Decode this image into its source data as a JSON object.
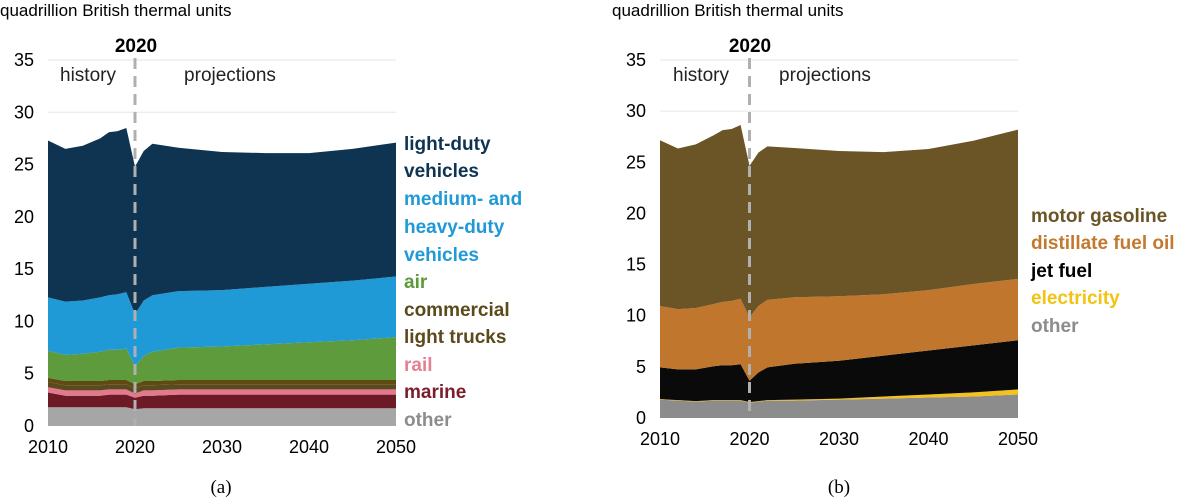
{
  "chart_data": [
    {
      "type": "area",
      "stacked": true,
      "caption": "(a)",
      "unit_label": "quadrillion British thermal units",
      "marker_year": "2020",
      "history_label": "history",
      "projections_label": "projections",
      "x": [
        2010,
        2012,
        2014,
        2016,
        2017,
        2018,
        2019,
        2020,
        2021,
        2022,
        2025,
        2030,
        2035,
        2040,
        2045,
        2050
      ],
      "xlim": [
        2010,
        2050
      ],
      "ylim": [
        0,
        35
      ],
      "xticks": [
        "2010",
        "2020",
        "2030",
        "2040",
        "2050"
      ],
      "yticks": [
        "0",
        "5",
        "10",
        "15",
        "20",
        "25",
        "30",
        "35"
      ],
      "series": [
        {
          "name": "other",
          "color": "#a6a6a6",
          "label_color": "#8c8c8c",
          "values": [
            1.8,
            1.8,
            1.8,
            1.8,
            1.8,
            1.8,
            1.8,
            1.6,
            1.7,
            1.7,
            1.7,
            1.7,
            1.7,
            1.7,
            1.7,
            1.7
          ]
        },
        {
          "name": "marine",
          "color": "#6b1a26",
          "label_color": "#7b1e2b",
          "values": [
            1.4,
            1.1,
            1.1,
            1.1,
            1.2,
            1.2,
            1.2,
            1.1,
            1.2,
            1.2,
            1.3,
            1.3,
            1.3,
            1.3,
            1.3,
            1.3
          ]
        },
        {
          "name": "rail",
          "color": "#e3798e",
          "label_color": "#e57f92",
          "values": [
            0.5,
            0.5,
            0.5,
            0.5,
            0.5,
            0.5,
            0.5,
            0.4,
            0.5,
            0.5,
            0.5,
            0.5,
            0.5,
            0.5,
            0.5,
            0.5
          ]
        },
        {
          "name": "light trucks",
          "color": "#5a4a1e",
          "label_color": "#5b4a1c",
          "values": [
            0.5,
            0.5,
            0.5,
            0.5,
            0.5,
            0.5,
            0.5,
            0.5,
            0.5,
            0.5,
            0.5,
            0.5,
            0.5,
            0.5,
            0.5,
            0.5
          ]
        },
        {
          "name": "commercial",
          "color": "#5f4b12",
          "label_color": "#5b4a1c",
          "values": [
            0.4,
            0.4,
            0.4,
            0.4,
            0.4,
            0.4,
            0.4,
            0.4,
            0.4,
            0.4,
            0.4,
            0.4,
            0.4,
            0.4,
            0.4,
            0.4
          ]
        },
        {
          "name": "air",
          "color": "#5d9b3c",
          "label_color": "#5a9a3a",
          "values": [
            2.6,
            2.5,
            2.6,
            2.8,
            2.9,
            2.9,
            3.0,
            1.7,
            2.4,
            2.8,
            3.1,
            3.2,
            3.4,
            3.6,
            3.8,
            4.1
          ]
        },
        {
          "name": "medium- and heavy-duty vehicles",
          "color": "#1f9ad6",
          "label_color": "#1f9ad6",
          "values": [
            5.1,
            5.1,
            5.1,
            5.2,
            5.2,
            5.3,
            5.4,
            5.0,
            5.3,
            5.4,
            5.4,
            5.4,
            5.5,
            5.6,
            5.7,
            5.8
          ]
        },
        {
          "name": "light-duty vehicles",
          "color": "#0e3452",
          "label_color": "#0e3452",
          "values": [
            15.0,
            14.6,
            14.8,
            15.2,
            15.6,
            15.6,
            15.7,
            14.1,
            14.3,
            14.5,
            13.7,
            13.2,
            12.8,
            12.5,
            12.6,
            12.8
          ]
        }
      ],
      "legend": [
        "light-duty",
        "vehicles",
        "medium- and",
        "heavy-duty",
        "vehicles",
        "air",
        "commercial",
        "light trucks",
        "rail",
        "marine",
        "other"
      ]
    },
    {
      "type": "area",
      "stacked": true,
      "caption": "(b)",
      "unit_label": "quadrillion British thermal units",
      "marker_year": "2020",
      "history_label": "history",
      "projections_label": "projections",
      "x": [
        2010,
        2012,
        2014,
        2016,
        2017,
        2018,
        2019,
        2020,
        2021,
        2022,
        2025,
        2030,
        2035,
        2040,
        2045,
        2050
      ],
      "xlim": [
        2010,
        2050
      ],
      "ylim": [
        0,
        35
      ],
      "xticks": [
        "2010",
        "2020",
        "2030",
        "2040",
        "2050"
      ],
      "yticks": [
        "0",
        "5",
        "10",
        "15",
        "20",
        "25",
        "30",
        "35"
      ],
      "series": [
        {
          "name": "other",
          "color": "#8c8c8c",
          "label_color": "#8c8c8c",
          "values": [
            1.8,
            1.7,
            1.6,
            1.7,
            1.7,
            1.7,
            1.7,
            1.5,
            1.6,
            1.7,
            1.7,
            1.8,
            1.9,
            2.0,
            2.1,
            2.3
          ]
        },
        {
          "name": "electricity",
          "color": "#f5c21b",
          "label_color": "#f2c314",
          "values": [
            0.05,
            0.05,
            0.05,
            0.05,
            0.05,
            0.05,
            0.05,
            0.05,
            0.05,
            0.05,
            0.1,
            0.1,
            0.2,
            0.3,
            0.4,
            0.5
          ]
        },
        {
          "name": "jet fuel",
          "color": "#0a0a0a",
          "label_color": "#000000",
          "values": [
            3.1,
            3.0,
            3.1,
            3.3,
            3.4,
            3.4,
            3.5,
            2.1,
            2.8,
            3.2,
            3.5,
            3.7,
            4.0,
            4.3,
            4.6,
            4.8
          ]
        },
        {
          "name": "distillate fuel oil",
          "color": "#c0762c",
          "label_color": "#c37a2e",
          "values": [
            6.0,
            5.9,
            6.0,
            6.1,
            6.2,
            6.3,
            6.4,
            6.2,
            6.5,
            6.6,
            6.5,
            6.3,
            6.0,
            5.9,
            6.0,
            6.0
          ]
        },
        {
          "name": "motor gasoline",
          "color": "#6b5425",
          "label_color": "#6b5425",
          "values": [
            16.2,
            15.7,
            16.0,
            16.5,
            16.8,
            16.8,
            17.0,
            14.8,
            15.0,
            15.0,
            14.6,
            14.2,
            13.9,
            13.8,
            14.0,
            14.6
          ]
        }
      ],
      "legend": [
        "motor gasoline",
        "distillate fuel oil",
        "jet fuel",
        "electricity",
        "other"
      ]
    }
  ]
}
